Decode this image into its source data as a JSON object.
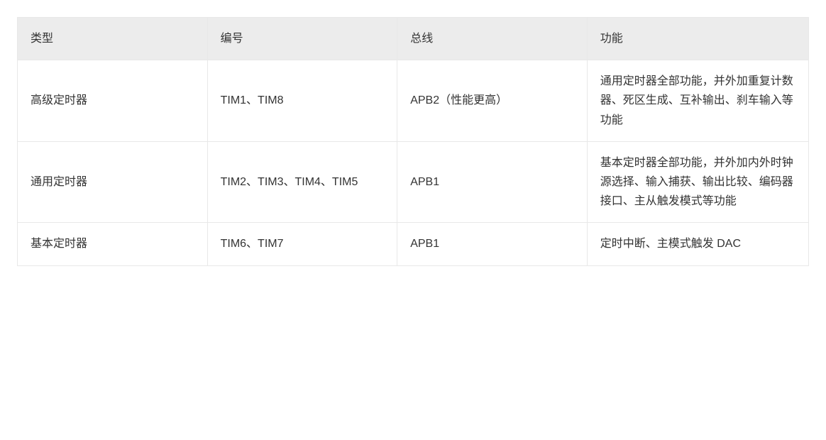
{
  "table": {
    "type": "table",
    "columns": [
      {
        "key": "type",
        "label": "类型",
        "width_pct": 24,
        "align": "left"
      },
      {
        "key": "number",
        "label": "编号",
        "width_pct": 24,
        "align": "left"
      },
      {
        "key": "bus",
        "label": "总线",
        "width_pct": 24,
        "align": "left"
      },
      {
        "key": "function",
        "label": "功能",
        "width_pct": 28,
        "align": "left"
      }
    ],
    "rows": [
      {
        "type": "高级定时器",
        "number": "TIM1、TIM8",
        "bus": "APB2（性能更高）",
        "function": "通用定时器全部功能，并外加重复计数器、死区生成、互补输出、刹车输入等功能"
      },
      {
        "type": "通用定时器",
        "number": "TIM2、TIM3、TIM4、TIM5",
        "bus": "APB1",
        "function": "基本定时器全部功能，并外加内外时钟源选择、输入捕获、输出比较、编码器接口、主从触发模式等功能"
      },
      {
        "type": "基本定时器",
        "number": "TIM6、TIM7",
        "bus": "APB1",
        "function": "定时中断、主模式触发 DAC"
      }
    ],
    "style": {
      "header_bg": "#ececec",
      "cell_bg": "#ffffff",
      "border_color": "#e8e8e8",
      "text_color": "#333333",
      "font_size_pt": 12,
      "font_family": "Microsoft YaHei",
      "line_height": 1.7,
      "cell_padding_px": "16 18"
    }
  }
}
